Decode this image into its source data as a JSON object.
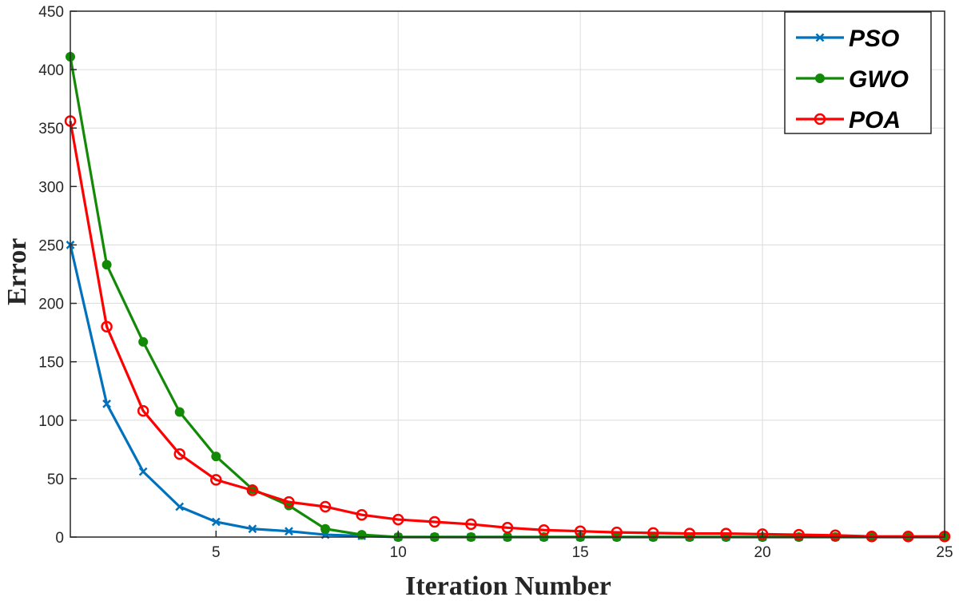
{
  "chart_data": {
    "type": "line",
    "title": "",
    "xlabel": "Iteration Number",
    "ylabel": "Error",
    "xlim": [
      1,
      25
    ],
    "ylim": [
      0,
      450
    ],
    "xticks": [
      5,
      10,
      15,
      20,
      25
    ],
    "yticks": [
      0,
      50,
      100,
      150,
      200,
      250,
      300,
      350,
      400,
      450
    ],
    "grid": true,
    "legend_position": "top-right",
    "x": [
      1,
      2,
      3,
      4,
      5,
      6,
      7,
      8,
      9,
      10,
      11,
      12,
      13,
      14,
      15,
      16,
      17,
      18,
      19,
      20,
      21,
      22,
      23,
      24,
      25
    ],
    "series": [
      {
        "name": "PSO",
        "color": "#0072bd",
        "marker": "x",
        "values": [
          250,
          114,
          56,
          26,
          13,
          7,
          5,
          2,
          1,
          0,
          0,
          0,
          0,
          0,
          0,
          0,
          0,
          0,
          0,
          0,
          0,
          0,
          0,
          0,
          0
        ]
      },
      {
        "name": "GWO",
        "color": "#138a07",
        "marker": "filled-circle",
        "values": [
          411,
          233,
          167,
          107,
          69,
          41,
          27,
          7,
          2,
          0,
          0,
          0,
          0,
          0,
          0,
          0,
          0,
          0,
          0,
          0,
          0,
          0,
          0,
          0,
          0
        ]
      },
      {
        "name": "POA",
        "color": "#ff0000",
        "marker": "open-circle",
        "values": [
          356,
          180,
          108,
          71,
          49,
          40,
          30,
          26,
          19,
          15,
          13,
          11,
          8,
          6,
          5,
          4,
          3.5,
          3,
          3,
          2.5,
          2,
          1.5,
          0.5,
          0.5,
          0.5
        ]
      }
    ]
  }
}
